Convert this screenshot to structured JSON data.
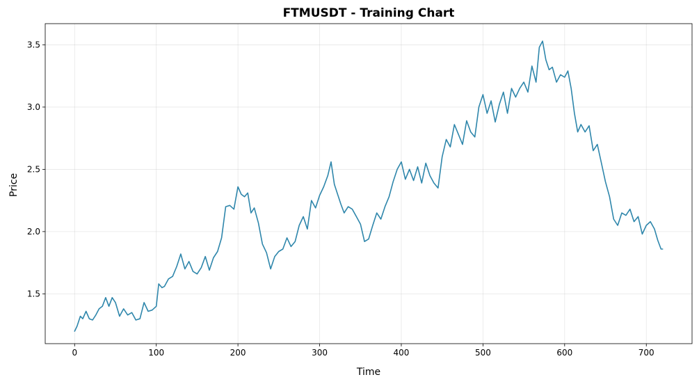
{
  "chart_data": {
    "type": "line",
    "title": "FTMUSDT - Training Chart",
    "xlabel": "Time",
    "ylabel": "Price",
    "xlim": [
      -36,
      756
    ],
    "ylim": [
      1.1,
      3.67
    ],
    "xticks": [
      0,
      100,
      200,
      300,
      400,
      500,
      600,
      700
    ],
    "xtick_labels": [
      "0",
      "100",
      "200",
      "300",
      "400",
      "500",
      "600",
      "700"
    ],
    "yticks": [
      1.5,
      2.0,
      2.5,
      3.0,
      3.5
    ],
    "ytick_labels": [
      "1.5",
      "2.0",
      "2.5",
      "3.0",
      "3.5"
    ],
    "grid": true,
    "series": [
      {
        "color": "#2e86ab",
        "x": [
          0,
          3,
          7,
          10,
          14,
          18,
          22,
          26,
          30,
          34,
          38,
          42,
          46,
          50,
          55,
          60,
          65,
          70,
          75,
          80,
          85,
          90,
          95,
          100,
          103,
          107,
          110,
          115,
          120,
          125,
          130,
          135,
          140,
          145,
          150,
          155,
          160,
          165,
          170,
          175,
          180,
          185,
          190,
          195,
          200,
          204,
          208,
          212,
          216,
          220,
          225,
          230,
          235,
          240,
          245,
          250,
          255,
          260,
          265,
          270,
          275,
          280,
          285,
          290,
          295,
          300,
          305,
          310,
          314,
          318,
          322,
          326,
          330,
          335,
          340,
          345,
          350,
          355,
          360,
          365,
          370,
          375,
          380,
          385,
          390,
          395,
          400,
          405,
          410,
          415,
          420,
          425,
          430,
          435,
          440,
          445,
          450,
          455,
          460,
          465,
          470,
          475,
          480,
          485,
          490,
          495,
          500,
          505,
          510,
          515,
          520,
          525,
          530,
          535,
          540,
          545,
          550,
          555,
          560,
          565,
          569,
          573,
          577,
          581,
          585,
          590,
          595,
          600,
          604,
          608,
          612,
          616,
          620,
          625,
          630,
          635,
          640,
          645,
          650,
          655,
          660,
          665,
          670,
          675,
          680,
          685,
          690,
          695,
          700,
          705,
          710,
          714,
          718,
          720
        ],
        "y": [
          1.2,
          1.24,
          1.32,
          1.3,
          1.36,
          1.3,
          1.29,
          1.33,
          1.38,
          1.4,
          1.47,
          1.4,
          1.47,
          1.43,
          1.32,
          1.38,
          1.33,
          1.35,
          1.29,
          1.3,
          1.43,
          1.36,
          1.37,
          1.4,
          1.58,
          1.55,
          1.56,
          1.62,
          1.64,
          1.72,
          1.82,
          1.7,
          1.76,
          1.68,
          1.66,
          1.71,
          1.8,
          1.69,
          1.79,
          1.84,
          1.95,
          2.2,
          2.21,
          2.18,
          2.36,
          2.3,
          2.28,
          2.31,
          2.15,
          2.19,
          2.07,
          1.9,
          1.83,
          1.7,
          1.8,
          1.84,
          1.86,
          1.95,
          1.88,
          1.92,
          2.05,
          2.12,
          2.02,
          2.25,
          2.19,
          2.29,
          2.36,
          2.45,
          2.56,
          2.38,
          2.3,
          2.22,
          2.15,
          2.2,
          2.18,
          2.12,
          2.06,
          1.92,
          1.94,
          2.05,
          2.15,
          2.1,
          2.2,
          2.28,
          2.4,
          2.5,
          2.56,
          2.42,
          2.5,
          2.41,
          2.52,
          2.39,
          2.55,
          2.45,
          2.39,
          2.35,
          2.6,
          2.74,
          2.68,
          2.86,
          2.78,
          2.7,
          2.89,
          2.8,
          2.76,
          3.0,
          3.1,
          2.95,
          3.05,
          2.88,
          3.02,
          3.12,
          2.95,
          3.15,
          3.08,
          3.15,
          3.2,
          3.12,
          3.33,
          3.2,
          3.48,
          3.53,
          3.38,
          3.3,
          3.32,
          3.2,
          3.26,
          3.24,
          3.29,
          3.15,
          2.95,
          2.8,
          2.86,
          2.8,
          2.85,
          2.65,
          2.7,
          2.55,
          2.4,
          2.28,
          2.1,
          2.05,
          2.15,
          2.13,
          2.18,
          2.08,
          2.12,
          1.98,
          2.05,
          2.08,
          2.02,
          1.93,
          1.86,
          1.86
        ]
      }
    ]
  }
}
